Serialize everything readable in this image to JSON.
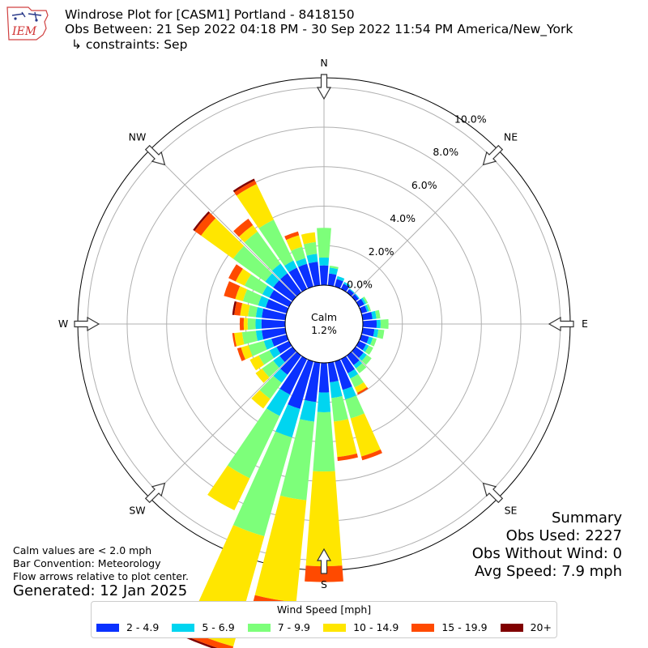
{
  "header": {
    "title": "Windrose Plot for [CASM1] Portland - 8418150",
    "obs_between": "Obs Between: 21 Sep 2022 04:18 PM - 30 Sep 2022 11:54 PM America/New_York",
    "constraints": "↳ constraints: Sep"
  },
  "logo": {
    "text": "IEM"
  },
  "summary": {
    "heading": "Summary",
    "obs_used": "Obs Used: 2227",
    "obs_without_wind": "Obs Without Wind: 0",
    "avg_speed": "Avg Speed: 7.9 mph"
  },
  "notes": {
    "calm_note": "Calm values are < 2.0 mph",
    "bar_convention": "Bar Convention: Meteorology",
    "flow_note": "Flow arrows relative to plot center.",
    "generated": "Generated: 12 Jan 2025"
  },
  "legend": {
    "title": "Wind Speed [mph]",
    "items": [
      {
        "label": "2 - 4.9",
        "color": "#0a31ff"
      },
      {
        "label": "5 - 6.9",
        "color": "#00d5f0"
      },
      {
        "label": "7 - 9.9",
        "color": "#7dff7a"
      },
      {
        "label": "10 - 14.9",
        "color": "#ffe600"
      },
      {
        "label": "15 - 19.9",
        "color": "#ff4a00"
      },
      {
        "label": "20+",
        "color": "#800000"
      }
    ]
  },
  "chart_data": {
    "type": "windrose",
    "calm": {
      "label": "Calm",
      "value": "1.2%"
    },
    "radial_ticks": [
      "0.0%",
      "2.0%",
      "4.0%",
      "6.0%",
      "8.0%",
      "10.0%"
    ],
    "radial_max": 10.5,
    "directions": [
      "N",
      "NE",
      "E",
      "SE",
      "S",
      "SW",
      "W",
      "NW"
    ],
    "bin_colors": [
      "#0a31ff",
      "#00d5f0",
      "#7dff7a",
      "#ffe600",
      "#ff4a00",
      "#800000"
    ],
    "petals": [
      {
        "dir": 0,
        "values": [
          1.0,
          0.4,
          1.5,
          0,
          0,
          0
        ]
      },
      {
        "dir": 10,
        "values": [
          0.6,
          0.3,
          0.1,
          0,
          0,
          0
        ]
      },
      {
        "dir": 20,
        "values": [
          0.4,
          0.15,
          0,
          0,
          0,
          0
        ]
      },
      {
        "dir": 30,
        "values": [
          0.3,
          0.1,
          0,
          0,
          0,
          0
        ]
      },
      {
        "dir": 40,
        "values": [
          0.2,
          0.05,
          0,
          0,
          0,
          0
        ]
      },
      {
        "dir": 50,
        "values": [
          0.2,
          0.05,
          0,
          0,
          0,
          0
        ]
      },
      {
        "dir": 60,
        "values": [
          0.3,
          0.1,
          0.1,
          0,
          0,
          0
        ]
      },
      {
        "dir": 70,
        "values": [
          0.3,
          0.1,
          0.1,
          0,
          0,
          0
        ]
      },
      {
        "dir": 80,
        "values": [
          0.5,
          0.2,
          0.2,
          0,
          0,
          0
        ]
      },
      {
        "dir": 90,
        "values": [
          0.7,
          0.2,
          0.4,
          0,
          0,
          0
        ]
      },
      {
        "dir": 100,
        "values": [
          0.6,
          0.2,
          0.3,
          0,
          0,
          0
        ]
      },
      {
        "dir": 110,
        "values": [
          0.4,
          0.2,
          0.2,
          0,
          0,
          0
        ]
      },
      {
        "dir": 120,
        "values": [
          0.4,
          0.15,
          0.25,
          0,
          0,
          0
        ]
      },
      {
        "dir": 130,
        "values": [
          0.5,
          0.2,
          0.3,
          0,
          0,
          0
        ]
      },
      {
        "dir": 140,
        "values": [
          0.6,
          0.2,
          0.3,
          0,
          0,
          0
        ]
      },
      {
        "dir": 150,
        "values": [
          0.8,
          0.3,
          0.5,
          0.3,
          0.1,
          0
        ]
      },
      {
        "dir": 160,
        "values": [
          1.5,
          0.5,
          1.0,
          2.0,
          0.2,
          0
        ]
      },
      {
        "dir": 170,
        "values": [
          1.0,
          0.8,
          1.2,
          1.8,
          0.2,
          0
        ]
      },
      {
        "dir": 180,
        "values": [
          1.5,
          1.0,
          3.0,
          4.8,
          0.8,
          0
        ]
      },
      {
        "dir": 190,
        "values": [
          2.0,
          1.0,
          4.0,
          5.2,
          0.5,
          0
        ]
      },
      {
        "dir": 200,
        "values": [
          2.5,
          1.5,
          5.2,
          5.8,
          0.3,
          0.1
        ]
      },
      {
        "dir": 210,
        "values": [
          2.0,
          1.2,
          3.5,
          1.8,
          0,
          0
        ]
      },
      {
        "dir": 220,
        "values": [
          1.2,
          0.5,
          1.0,
          0.6,
          0,
          0
        ]
      },
      {
        "dir": 230,
        "values": [
          0.8,
          0.4,
          0.7,
          0.4,
          0,
          0
        ]
      },
      {
        "dir": 240,
        "values": [
          0.7,
          0.4,
          0.6,
          0.5,
          0,
          0
        ]
      },
      {
        "dir": 250,
        "values": [
          0.8,
          0.4,
          0.8,
          0.4,
          0.2,
          0
        ]
      },
      {
        "dir": 260,
        "values": [
          1.2,
          0.3,
          0.7,
          0.4,
          0.1,
          0
        ]
      },
      {
        "dir": 270,
        "values": [
          1.2,
          0.3,
          0.4,
          0.2,
          0.2,
          0
        ]
      },
      {
        "dir": 280,
        "values": [
          1.2,
          0.3,
          0.4,
          0.4,
          0.3,
          0.1
        ]
      },
      {
        "dir": 290,
        "values": [
          1.1,
          0.4,
          0.8,
          0.4,
          0.6,
          0
        ]
      },
      {
        "dir": 300,
        "values": [
          1.1,
          0.4,
          1.0,
          0.5,
          0.4,
          0
        ]
      },
      {
        "dir": 310,
        "values": [
          1.2,
          0.5,
          2.0,
          2.0,
          0.4,
          0.1
        ]
      },
      {
        "dir": 320,
        "values": [
          1.2,
          0.6,
          2.0,
          0.4,
          0.4,
          0
        ]
      },
      {
        "dir": 330,
        "values": [
          1.2,
          0.4,
          2.3,
          2.0,
          0.2,
          0.1
        ]
      },
      {
        "dir": 340,
        "values": [
          1.2,
          0.3,
          0.6,
          0.6,
          0.2,
          0
        ]
      },
      {
        "dir": 350,
        "values": [
          1.2,
          0.4,
          0.6,
          0.5,
          0,
          0
        ]
      }
    ]
  }
}
